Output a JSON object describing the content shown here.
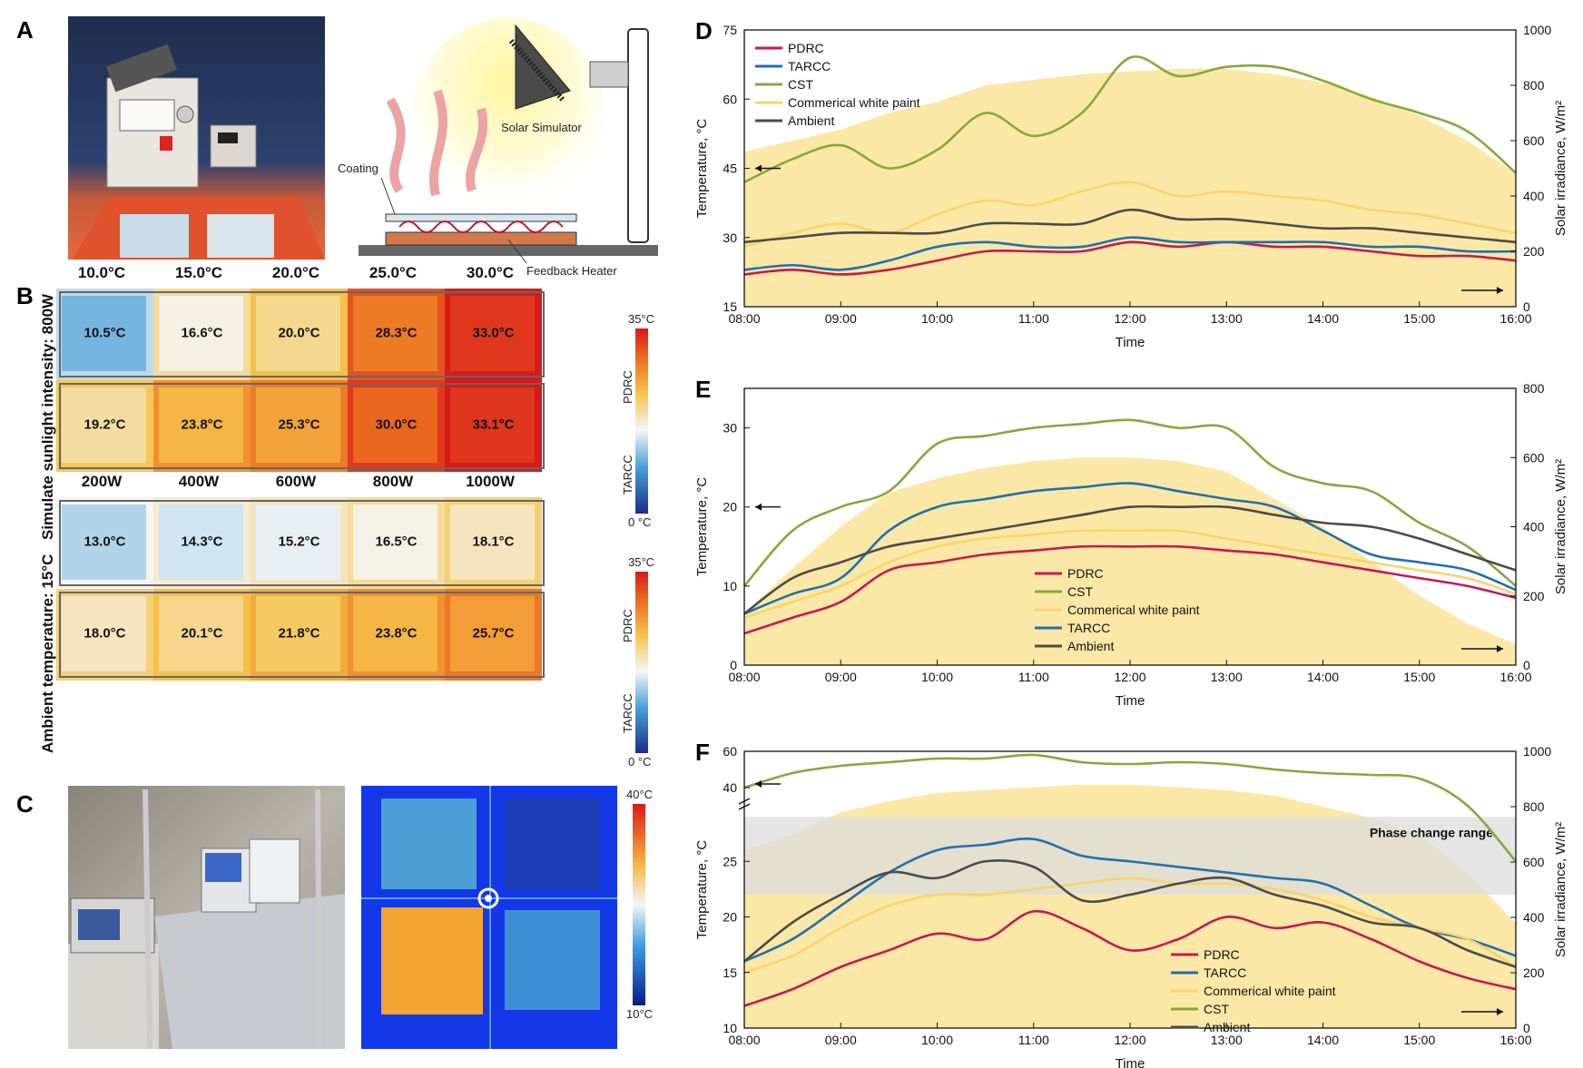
{
  "colors": {
    "pdrc": "#c8184f",
    "tarcc": "#1f6fb0",
    "cst": "#86a83a",
    "paint": "#fad36a",
    "ambient": "#4a4a4a",
    "irradiance_fill": "#fbe8a6",
    "phase_band": "#dcdcdc",
    "hot": "#e8231c",
    "cold": "#1b3a9e"
  },
  "panel_a": {
    "letter": "A",
    "labels": {
      "solar_simulator": "Solar Simulator",
      "coating": "Coating",
      "feedback_heater": "Feedback Heater"
    }
  },
  "panel_b": {
    "letter": "B",
    "top": {
      "side_label": "Simulate sunlight intensity: 800W",
      "headers": [
        "10.0°C",
        "15.0°C",
        "20.0°C",
        "25.0°C",
        "30.0°C"
      ],
      "pdrc": [
        "10.5°C",
        "16.6°C",
        "20.0°C",
        "28.3°C",
        "33.0°C"
      ],
      "tarcc": [
        "19.2°C",
        "23.8°C",
        "25.3°C",
        "30.0°C",
        "33.1°C"
      ],
      "scale_max": "35°C",
      "scale_min": "0 °C",
      "row_labels": [
        "PDRC",
        "TARCC"
      ]
    },
    "bottom": {
      "side_label": "Ambient temperature: 15°C",
      "headers": [
        "200W",
        "400W",
        "600W",
        "800W",
        "1000W"
      ],
      "pdrc": [
        "13.0°C",
        "14.3°C",
        "15.2°C",
        "16.5°C",
        "18.1°C"
      ],
      "tarcc": [
        "18.0°C",
        "20.1°C",
        "21.8°C",
        "23.8°C",
        "25.7°C"
      ],
      "scale_max": "35°C",
      "scale_min": "0 °C",
      "row_labels": [
        "PDRC",
        "TARCC"
      ]
    }
  },
  "panel_c": {
    "letter": "C",
    "scale_max": "40°C",
    "scale_min": "10°C"
  },
  "chart_data": [
    {
      "panel": "D",
      "type": "line",
      "xlabel": "Time",
      "ylabel": "Temperature, °C",
      "y2label": "Solar irradiance, W/m²",
      "x_ticks": [
        "08:00",
        "09:00",
        "10:00",
        "11:00",
        "12:00",
        "13:00",
        "14:00",
        "15:00",
        "16:00"
      ],
      "ylim": [
        15,
        75
      ],
      "y_ticks": [
        "15",
        "30",
        "45",
        "60",
        "75"
      ],
      "y2lim": [
        0,
        1000
      ],
      "y2_ticks": [
        "0",
        "200",
        "400",
        "600",
        "800",
        "1000"
      ],
      "x_hours": [
        8,
        8.5,
        9,
        9.5,
        10,
        10.5,
        11,
        11.5,
        12,
        12.5,
        13,
        13.5,
        14,
        14.5,
        15,
        15.5,
        16
      ],
      "irradiance": [
        560,
        600,
        640,
        700,
        740,
        800,
        820,
        840,
        850,
        860,
        860,
        840,
        810,
        760,
        690,
        600,
        480
      ],
      "series": [
        {
          "name": "PDRC",
          "key": "pdrc",
          "values": [
            22,
            23,
            22,
            23,
            25,
            27,
            27,
            27,
            29,
            28,
            29,
            28,
            28,
            27,
            26,
            26,
            25
          ]
        },
        {
          "name": "TARCC",
          "key": "tarcc",
          "values": [
            23,
            24,
            23,
            25,
            28,
            29,
            28,
            28,
            30,
            29,
            29,
            29,
            29,
            28,
            28,
            27,
            27
          ]
        },
        {
          "name": "CST",
          "key": "cst",
          "values": [
            42,
            47,
            50,
            45,
            49,
            57,
            52,
            57,
            69,
            65,
            67,
            67,
            64,
            60,
            57,
            53,
            44
          ]
        },
        {
          "name": "Commerical white paint",
          "key": "paint",
          "values": [
            28,
            31,
            33,
            31,
            35,
            38,
            37,
            40,
            42,
            39,
            40,
            39,
            38,
            36,
            35,
            33,
            31
          ]
        },
        {
          "name": "Ambient",
          "key": "ambient",
          "values": [
            29,
            30,
            31,
            31,
            31,
            33,
            33,
            33,
            36,
            34,
            34,
            33,
            32,
            32,
            31,
            30,
            29
          ]
        }
      ],
      "legend_position": "top-left"
    },
    {
      "panel": "E",
      "type": "line",
      "xlabel": "Time",
      "ylabel": "Temperature, °C",
      "y2label": "Solar irradiance, W/m²",
      "x_ticks": [
        "08:00",
        "09:00",
        "10:00",
        "11:00",
        "12:00",
        "13:00",
        "14:00",
        "15:00",
        "16:00"
      ],
      "ylim": [
        0,
        35
      ],
      "y_ticks": [
        "0",
        "10",
        "20",
        "30"
      ],
      "y2lim": [
        0,
        800
      ],
      "y2_ticks": [
        "0",
        "200",
        "400",
        "600",
        "800"
      ],
      "x_hours": [
        8,
        8.5,
        9,
        9.5,
        10,
        10.5,
        11,
        11.5,
        12,
        12.5,
        13,
        13.5,
        14,
        14.5,
        15,
        15.5,
        16
      ],
      "irradiance": [
        150,
        280,
        400,
        500,
        540,
        570,
        590,
        600,
        600,
        590,
        560,
        480,
        400,
        300,
        200,
        120,
        60
      ],
      "series": [
        {
          "name": "PDRC",
          "key": "pdrc",
          "values": [
            4,
            6,
            8,
            12,
            13,
            14,
            14.5,
            15,
            15,
            15,
            14.5,
            14,
            13,
            12,
            11,
            10,
            8.5
          ]
        },
        {
          "name": "CST",
          "key": "cst",
          "values": [
            10,
            17,
            20,
            22,
            28,
            29,
            30,
            30.5,
            31,
            30,
            30,
            25,
            23,
            22,
            18,
            15,
            10
          ]
        },
        {
          "name": "Commerical white paint",
          "key": "paint",
          "values": [
            6,
            8,
            10,
            13,
            15,
            16,
            16.5,
            17,
            17,
            17,
            16,
            15,
            14,
            13,
            12,
            11,
            9
          ]
        },
        {
          "name": "TARCC",
          "key": "tarcc",
          "values": [
            6.5,
            9,
            11,
            17,
            20,
            21,
            22,
            22.5,
            23,
            22,
            21,
            20,
            17,
            14,
            13,
            12,
            9.5
          ]
        },
        {
          "name": "Ambient",
          "key": "ambient",
          "values": [
            6.5,
            11,
            13,
            15,
            16,
            17,
            18,
            19,
            20,
            20,
            20,
            19,
            18,
            17.5,
            16,
            14,
            12
          ]
        }
      ],
      "legend_position": "center"
    },
    {
      "panel": "F",
      "type": "line",
      "xlabel": "Time",
      "ylabel": "Temperature, °C",
      "y2label": "Solar irradiance, W/m²",
      "x_ticks": [
        "08:00",
        "09:00",
        "10:00",
        "11:00",
        "12:00",
        "13:00",
        "14:00",
        "15:00",
        "16:00"
      ],
      "y_ticks": [
        "10",
        "15",
        "20",
        "25",
        "40",
        "60"
      ],
      "y2lim": [
        0,
        1000
      ],
      "y2_ticks": [
        "0",
        "200",
        "400",
        "600",
        "800",
        "1000"
      ],
      "x_hours": [
        8,
        8.5,
        9,
        9.5,
        10,
        10.5,
        11,
        11.5,
        12,
        12.5,
        13,
        13.5,
        14,
        14.5,
        15,
        15.5,
        16
      ],
      "irradiance": [
        640,
        700,
        780,
        820,
        850,
        860,
        870,
        880,
        880,
        870,
        860,
        840,
        800,
        760,
        700,
        560,
        380
      ],
      "annotation": "Phase change range",
      "phase_range": [
        22,
        29
      ],
      "series": [
        {
          "name": "PDRC",
          "key": "pdrc",
          "values": [
            12,
            13.5,
            15.5,
            17,
            18.5,
            18,
            20.5,
            19,
            17,
            18,
            20,
            19,
            19.5,
            18,
            16,
            14.5,
            13.5
          ]
        },
        {
          "name": "TARCC",
          "key": "tarcc",
          "values": [
            16,
            18,
            21,
            24,
            26,
            26.5,
            27,
            25.5,
            25,
            24.5,
            24,
            23.5,
            23,
            21,
            19,
            18,
            16.5
          ]
        },
        {
          "name": "Commerical white paint",
          "key": "paint",
          "values": [
            15,
            16.5,
            19,
            21,
            22,
            22,
            22.5,
            23,
            23.5,
            23,
            23,
            22.5,
            21.5,
            20,
            19,
            18,
            15.5
          ]
        },
        {
          "name": "CST",
          "key": "cst",
          "values": [
            40,
            48,
            52,
            54,
            56,
            56,
            58,
            54,
            53,
            54,
            53,
            50,
            48,
            47,
            45,
            30,
            25
          ]
        },
        {
          "name": "Ambient",
          "key": "ambient",
          "values": [
            16,
            19.5,
            22,
            24,
            23.5,
            25,
            24.5,
            21.5,
            22,
            23,
            23.5,
            22,
            21,
            19.5,
            19,
            17,
            15.5
          ]
        }
      ],
      "legend_position": "bottom-center"
    }
  ]
}
